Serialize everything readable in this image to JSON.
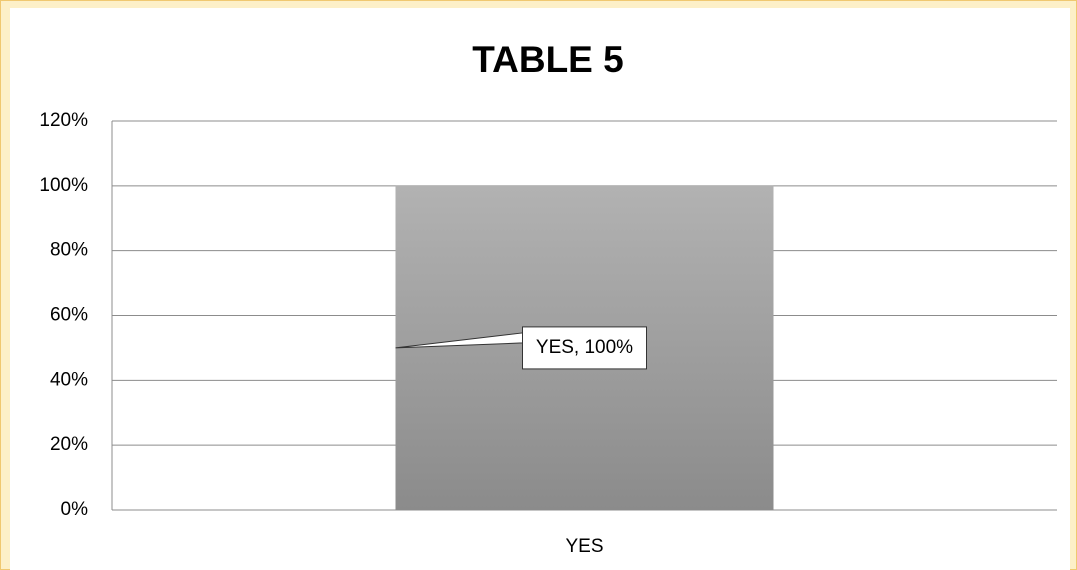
{
  "chart_data": {
    "type": "bar",
    "title": "TABLE 5",
    "categories": [
      "YES"
    ],
    "values": [
      100
    ],
    "value_labels": [
      "YES, 100%"
    ],
    "color": "#9e9e9e",
    "ylim": [
      0,
      120
    ],
    "yticks": [
      {
        "value": 0,
        "label": "0%"
      },
      {
        "value": 20,
        "label": "20%"
      },
      {
        "value": 40,
        "label": "40%"
      },
      {
        "value": 60,
        "label": "60%"
      },
      {
        "value": 80,
        "label": "80%"
      },
      {
        "value": 100,
        "label": "100%"
      },
      {
        "value": 120,
        "label": "120%"
      }
    ],
    "grid": true
  }
}
